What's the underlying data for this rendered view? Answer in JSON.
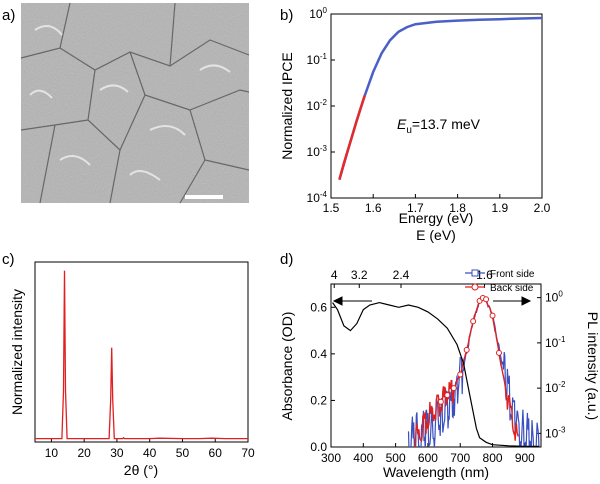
{
  "figure": {
    "panels": [
      {
        "label": "a)"
      },
      {
        "label": "b)"
      },
      {
        "label": "c)"
      },
      {
        "label": "d)"
      }
    ]
  },
  "colors": {
    "ipce_curve": "#4a5fc8",
    "ipce_fit": "#e52a2a",
    "xrd": "#e02020",
    "absorbance": "#000000",
    "pl_front": "#3a4fc0",
    "pl_back": "#e02020"
  },
  "chart_data": [
    {
      "panel": "a)",
      "type": "image",
      "description_visible": "",
      "scale_bar": true
    },
    {
      "panel": "b)",
      "type": "line",
      "title": "",
      "xlabel": "Energy (eV)",
      "xlabel2": "E (eV)",
      "ylabel": "Normalized IPCE",
      "xlim": [
        1.5,
        2.0
      ],
      "ylim": [
        0.0001,
        1
      ],
      "yscale": "log",
      "x_ticks": [
        "1.5",
        "1.6",
        "1.7",
        "1.8",
        "1.9",
        "2.0"
      ],
      "y_ticks": [
        "10-4",
        "10-3",
        "10-2",
        "10-1",
        "100"
      ],
      "annotation": {
        "prefix": "E",
        "sub": "u",
        "text": "=13.7 meV"
      },
      "series": [
        {
          "x": [
            1.52,
            1.54,
            1.56,
            1.58,
            1.6,
            1.62,
            1.64,
            1.66,
            1.68,
            1.7,
            1.75,
            1.8,
            1.85,
            1.9,
            1.95,
            2.0
          ],
          "y": [
            0.00025,
            0.0011,
            0.0045,
            0.017,
            0.055,
            0.14,
            0.27,
            0.41,
            0.52,
            0.6,
            0.68,
            0.72,
            0.75,
            0.77,
            0.8,
            0.82
          ]
        },
        {
          "x": [
            1.52,
            1.53,
            1.54,
            1.55,
            1.56,
            1.57,
            1.58
          ],
          "y": [
            0.00025,
            0.00055,
            0.0011,
            0.0022,
            0.0045,
            0.0088,
            0.017
          ]
        }
      ]
    },
    {
      "panel": "c)",
      "type": "line",
      "title": "",
      "xlabel": "2θ (°)",
      "ylabel": "Normalized intensity",
      "xlim": [
        5,
        70
      ],
      "ylim": [
        0,
        1.05
      ],
      "x_ticks": [
        "10",
        "20",
        "30",
        "40",
        "50",
        "60",
        "70"
      ],
      "series": [
        {
          "x": [
            5,
            13.2,
            13.7,
            14.0,
            14.3,
            14.8,
            16,
            27.6,
            28.1,
            28.4,
            28.7,
            29.2,
            31.8,
            32.0,
            32.3,
            40,
            43,
            50,
            55,
            59,
            63,
            70
          ],
          "y": [
            0.02,
            0.02,
            0.3,
            1.0,
            0.3,
            0.02,
            0.02,
            0.02,
            0.25,
            0.55,
            0.25,
            0.02,
            0.02,
            0.025,
            0.02,
            0.02,
            0.022,
            0.02,
            0.02,
            0.022,
            0.02,
            0.02
          ]
        }
      ]
    },
    {
      "panel": "d)",
      "type": "line",
      "title": "",
      "xlabel": "Wavelength (nm)",
      "ylabel": "Absorbance (OD)",
      "ylabel_right": "PL intensity (a.u.)",
      "xlim": [
        300,
        950
      ],
      "ylim_left": [
        0,
        0.7
      ],
      "ylim_right": [
        0.0005,
        2
      ],
      "yscale_right": "log",
      "x_ticks": [
        "300",
        "400",
        "500",
        "600",
        "700",
        "800",
        "900"
      ],
      "y_ticks_left": [
        "0.0",
        "0.2",
        "0.4",
        "0.6"
      ],
      "y_ticks_right": [
        "10-3",
        "10-2",
        "10-1",
        "100"
      ],
      "top_ticks": [
        "4",
        "3.2",
        "2.4",
        "1.6"
      ],
      "legend": [
        "Front side",
        "Back side"
      ],
      "legend_position": "top-right",
      "series": [
        {
          "name": "Absorbance",
          "x": [
            305,
            320,
            340,
            360,
            380,
            400,
            420,
            450,
            480,
            510,
            540,
            570,
            600,
            630,
            660,
            690,
            710,
            730,
            750,
            760,
            780,
            800,
            850,
            900,
            945
          ],
          "y": [
            0.62,
            0.59,
            0.52,
            0.5,
            0.53,
            0.59,
            0.61,
            0.62,
            0.61,
            0.6,
            0.61,
            0.6,
            0.58,
            0.55,
            0.51,
            0.44,
            0.36,
            0.22,
            0.08,
            0.04,
            0.02,
            0.01,
            0.005,
            0.003,
            0.003
          ]
        },
        {
          "name": "Front side",
          "x": [
            540,
            560,
            580,
            600,
            620,
            640,
            660,
            680,
            700,
            720,
            740,
            760,
            770,
            780,
            800,
            820,
            840,
            860,
            880,
            900,
            920,
            945
          ],
          "y": [
            0.0007,
            0.0008,
            0.0009,
            0.0012,
            0.0016,
            0.0022,
            0.003,
            0.006,
            0.015,
            0.06,
            0.3,
            0.85,
            0.95,
            0.9,
            0.4,
            0.08,
            0.015,
            0.004,
            0.0015,
            0.0009,
            0.0007,
            0.0006
          ]
        },
        {
          "name": "Back side",
          "x": [
            560,
            580,
            600,
            620,
            640,
            660,
            680,
            700,
            720,
            740,
            760,
            770,
            780,
            800,
            820,
            840,
            860,
            880
          ],
          "y": [
            0.0008,
            0.0012,
            0.0022,
            0.0035,
            0.005,
            0.007,
            0.01,
            0.02,
            0.07,
            0.3,
            0.85,
            0.98,
            0.92,
            0.4,
            0.06,
            0.01,
            0.002,
            0.0008
          ]
        }
      ]
    }
  ]
}
